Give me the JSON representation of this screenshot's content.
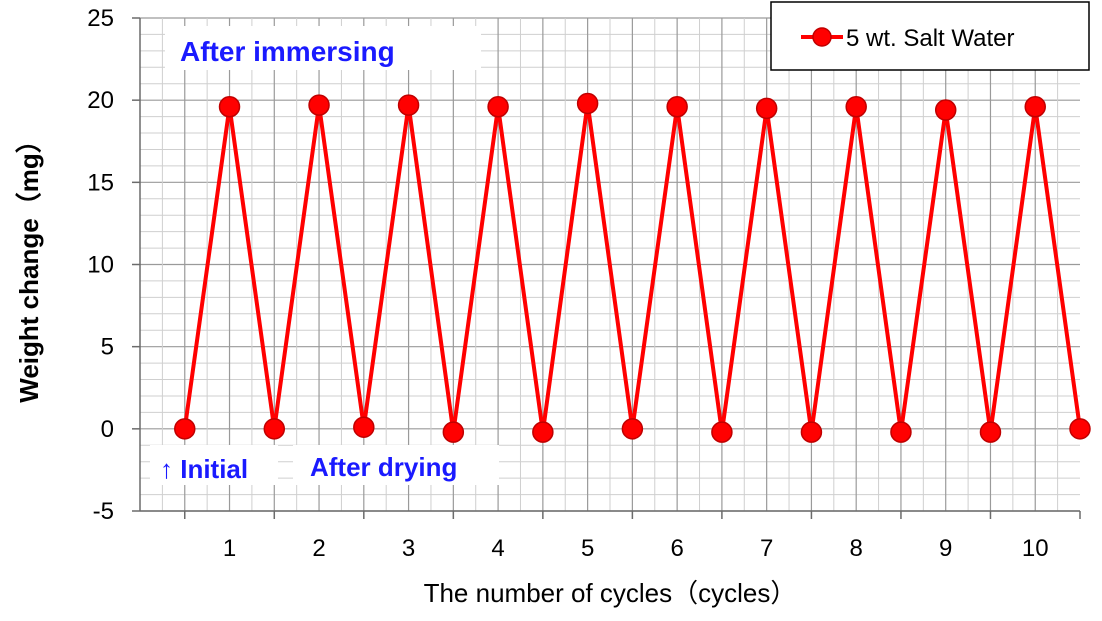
{
  "chart_data": {
    "type": "line",
    "xlabel": "The number of cycles（cycles）",
    "ylabel": "Weight change（mg）",
    "ylim": [
      -5,
      25
    ],
    "xlim": [
      0,
      10.5
    ],
    "y_ticks": [
      "25",
      "20",
      "15",
      "10",
      "5",
      "0",
      "-5"
    ],
    "x_tick_labels": [
      "1",
      "2",
      "3",
      "4",
      "5",
      "6",
      "7",
      "8",
      "9",
      "10"
    ],
    "grid": true,
    "legend_position": "top-right",
    "series": [
      {
        "name": "5 wt. Salt Water",
        "color": "#ff0000",
        "x": [
          0.5,
          1,
          1.5,
          2,
          2.5,
          3,
          3.5,
          4,
          4.5,
          5,
          5.5,
          6,
          6.5,
          7,
          7.5,
          8,
          8.5,
          9,
          9.5,
          10,
          10.5
        ],
        "y": [
          0,
          19.6,
          0,
          19.7,
          0.1,
          19.7,
          -0.2,
          19.6,
          -0.2,
          19.8,
          0,
          19.6,
          -0.2,
          19.5,
          -0.2,
          19.6,
          -0.2,
          19.4,
          -0.2,
          19.6,
          0
        ]
      }
    ],
    "annotations": {
      "after_immersing": "After immersing",
      "initial": "↑ Initial",
      "after_drying": "After drying"
    }
  }
}
